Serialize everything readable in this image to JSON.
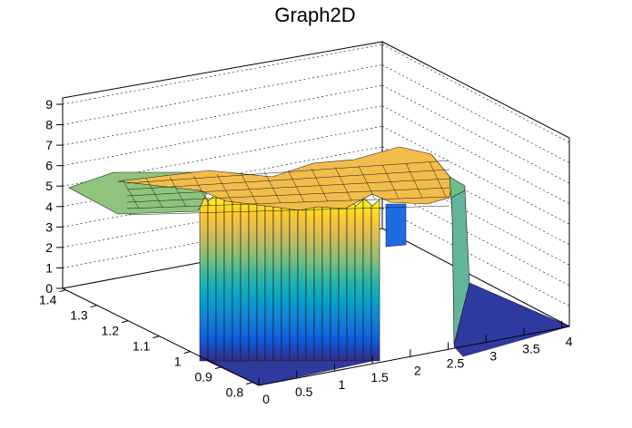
{
  "chart_data": {
    "type": "surface",
    "title": "Graph2D",
    "xlabel": "",
    "ylabel": "",
    "zlabel": "",
    "x_range": [
      0,
      4.1
    ],
    "y_range": [
      0.78,
      1.41
    ],
    "z_range": [
      0,
      9.3
    ],
    "x_ticks": [
      "0",
      "0.5",
      "1",
      "1.5",
      "2",
      "2.5",
      "3",
      "3.5",
      "4"
    ],
    "y_ticks": [
      "0.8",
      "0.9",
      "1",
      "1.1",
      "1.2",
      "1.3",
      "1.4"
    ],
    "z_ticks": [
      "0",
      "1",
      "2",
      "3",
      "4",
      "5",
      "6",
      "7",
      "8",
      "9"
    ],
    "grid": true,
    "colormap": "parula",
    "colormap_colors": [
      "#352a87",
      "#0f5cdd",
      "#1481d6",
      "#06a4ca",
      "#2eb7a4",
      "#87bf77",
      "#d1bb59",
      "#fec832",
      "#f9fb0e"
    ],
    "plateau_height_approx": 5.3,
    "surface_description_regions": [
      {
        "x_from": 0,
        "x_to": 1.0,
        "z_approx": 5.0
      },
      {
        "x_from": 1.0,
        "x_to": 1.6,
        "z_approx": 5.3,
        "note": "steep wall at y=0.8 edge"
      },
      {
        "x_from": 1.6,
        "x_to": 2.6,
        "z_approx": 0.0,
        "note": "zero region (front)"
      },
      {
        "x_from": 2.6,
        "x_to": 4.1,
        "z_approx": 0.0
      }
    ]
  }
}
